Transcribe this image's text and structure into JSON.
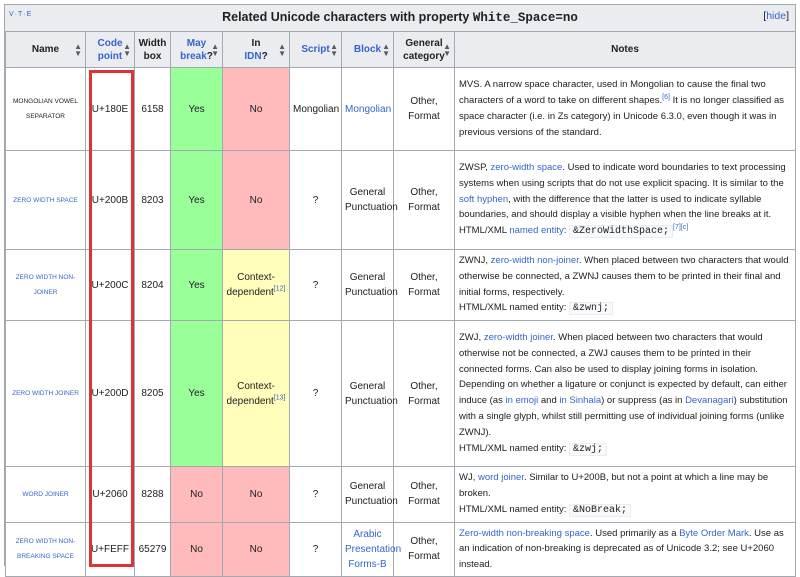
{
  "navbox": {
    "vte": "V·T·E",
    "title_prefix": "Related Unicode characters with property ",
    "title_code": "White_Space=no",
    "hide_label": "hide"
  },
  "headers": {
    "name": "Name",
    "code_point": "Code point",
    "width_box_line1": "Width",
    "width_box_line2": "box",
    "may_break_line1": "May",
    "may_break_line2": "break",
    "may_break_suffix": "?",
    "in_idn_line1": "In",
    "in_idn_line2": "IDN",
    "in_idn_suffix": "?",
    "script": "Script",
    "block": "Block",
    "general_category_line1": "General",
    "general_category_line2": "category",
    "notes": "Notes"
  },
  "rows": [
    {
      "name": "Mongolian vowel separator",
      "code_point": "U+180E",
      "width": "6158",
      "may_break": "Yes",
      "in_idn": "No",
      "script": "Mongolian",
      "block": "Mongolian",
      "category_line1": "Other,",
      "category_line2": "Format",
      "notes": {
        "text1": "MVS. A narrow space character, used in Mongolian to cause the final two characters of a word to take on different shapes.",
        "ref1": "[6]",
        "text2": " It is no longer classified as space character (i.e. in Zs category) in Unicode 6.3.0, even though it was in previous versions of the standard."
      }
    },
    {
      "name": "Zero width space",
      "code_point": "U+200B",
      "width": "8203",
      "may_break": "Yes",
      "in_idn": "No",
      "script": "?",
      "block_line1": "General",
      "block_line2": "Punctuation",
      "category_line1": "Other,",
      "category_line2": "Format",
      "notes": {
        "t1": "ZWSP, ",
        "l1": "zero-width space",
        "t2": ". Used to indicate word boundaries to text processing systems when using scripts that do not use explicit spacing. It is similar to the ",
        "l2": "soft hyphen",
        "t3": ", with the difference that the latter is used to indicate syllable boundaries, and should display a visible hyphen when the line breaks at it.",
        "t4": "HTML/XML ",
        "l3": "named entity",
        "t5": ": ",
        "code": "&ZeroWidthSpace;",
        "ref": "[7]",
        "ref2": "[c]"
      }
    },
    {
      "name": "Zero width non-joiner",
      "code_point": "U+200C",
      "width": "8204",
      "may_break": "Yes",
      "in_idn_line1": "Context-",
      "in_idn_line2": "dependent",
      "in_idn_ref": "[12]",
      "script": "?",
      "block_line1": "General",
      "block_line2": "Punctuation",
      "category_line1": "Other,",
      "category_line2": "Format",
      "notes": {
        "t1": "ZWNJ, ",
        "l1": "zero-width non-joiner",
        "t2": ". When placed between two characters that would otherwise be connected, a ZWNJ causes them to be printed in their final and initial forms, respectively.",
        "t3": "HTML/XML named entity: ",
        "code": "&zwnj;"
      }
    },
    {
      "name": "Zero width joiner",
      "code_point": "U+200D",
      "width": "8205",
      "may_break": "Yes",
      "in_idn_line1": "Context-",
      "in_idn_line2": "dependent",
      "in_idn_ref": "[13]",
      "script": "?",
      "block_line1": "General",
      "block_line2": "Punctuation",
      "category_line1": "Other,",
      "category_line2": "Format",
      "notes": {
        "t1": "ZWJ, ",
        "l1": "zero-width joiner",
        "t2": ". When placed between two characters that would otherwise not be connected, a ZWJ causes them to be printed in their connected forms. Can also be used to display joining forms in isolation. Depending on whether a ligature or conjunct is expected by default, can either induce (as ",
        "l2": "in emoji",
        "t3": " and ",
        "l3": "in Sinhala",
        "t4": ") or suppress (as in ",
        "l4": "Devanagari",
        "t5": ") substitution with a single glyph, whilst still permitting use of individual joining forms (unlike ZWNJ).",
        "t6": "HTML/XML named entity: ",
        "code": "&zwj;"
      }
    },
    {
      "name": "Word joiner",
      "code_point": "U+2060",
      "width": "8288",
      "may_break": "No",
      "in_idn": "No",
      "script": "?",
      "block_line1": "General",
      "block_line2": "Punctuation",
      "category_line1": "Other,",
      "category_line2": "Format",
      "notes": {
        "t1": "WJ, ",
        "l1": "word joiner",
        "t2": ". Similar to U+200B, but not a point at which a line may be broken.",
        "t3": "HTML/XML named entity: ",
        "code": "&NoBreak;"
      }
    },
    {
      "name_line1": "Zero width non-",
      "name_line2": "breaking space",
      "code_point": "U+FEFF",
      "width": "65279",
      "may_break": "No",
      "in_idn": "No",
      "script": "?",
      "block_line1": "Arabic",
      "block_line2": "Presentation",
      "block_line3": "Forms-B",
      "category_line1": "Other,",
      "category_line2": "Format",
      "notes": {
        "l1": "Zero-width non-breaking space",
        "t1": ". Used primarily as a ",
        "l2": "Byte Order Mark",
        "t2": ". Use as an indication of non-breaking is deprecated as of Unicode 3.2; see U+2060 instead."
      }
    }
  ],
  "colors": {
    "yes": "#99ff99",
    "no": "#ffbbbb",
    "partial": "#ffffbb",
    "link": "#3366cc",
    "highlight": "#dd3333"
  }
}
